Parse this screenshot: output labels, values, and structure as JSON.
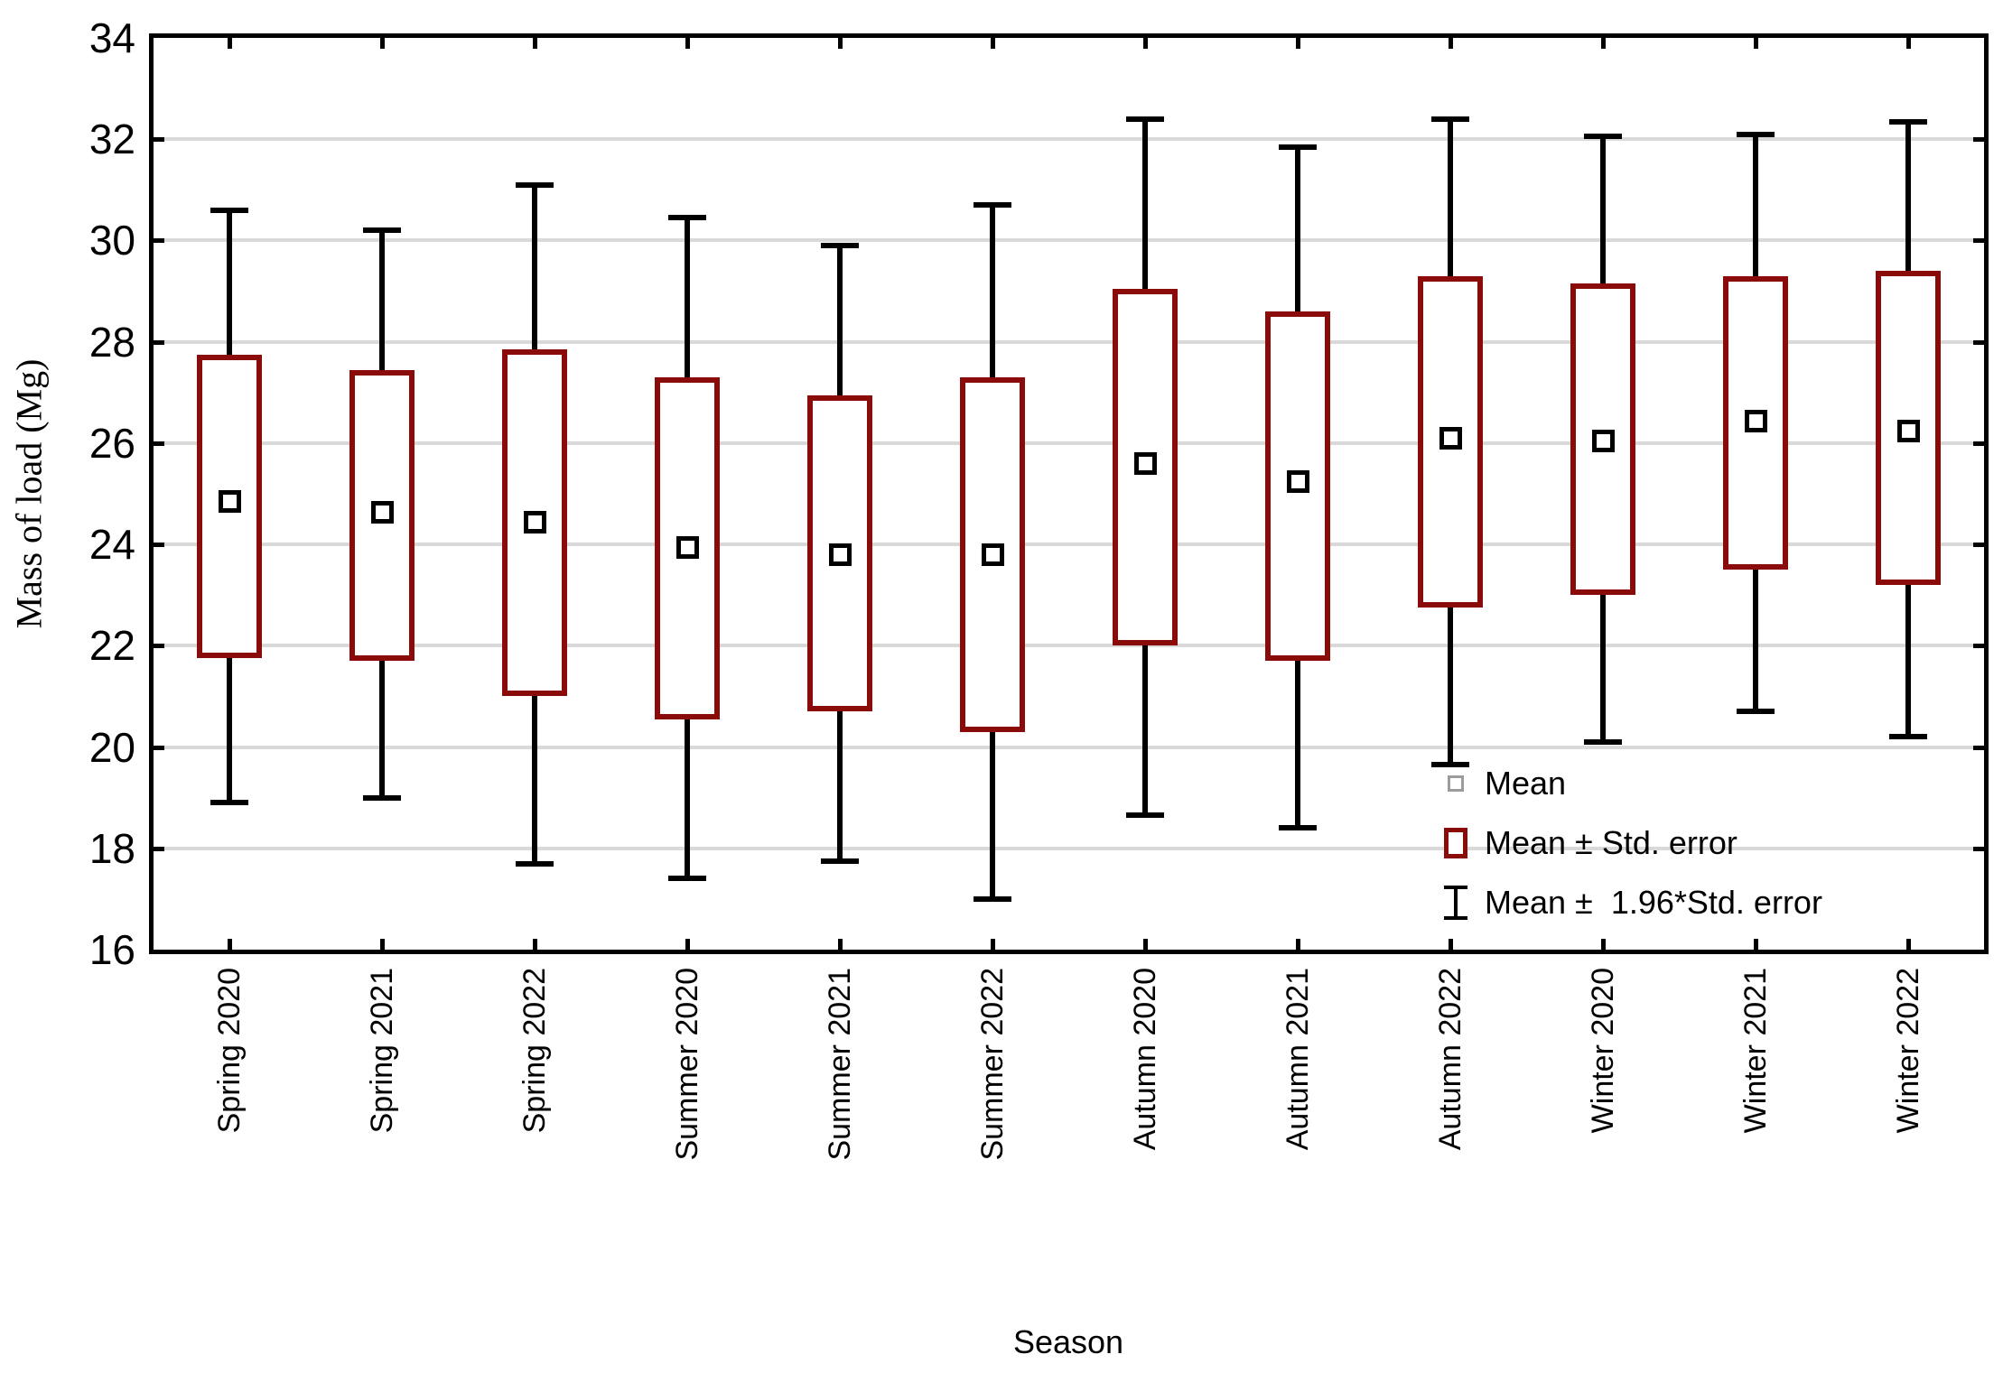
{
  "chart_data": {
    "type": "box",
    "title": "",
    "xlabel": "Season",
    "ylabel": "Mass of load (Mg)",
    "ylim": [
      16,
      34
    ],
    "yticks": [
      34,
      32,
      30,
      28,
      26,
      24,
      22,
      20,
      18,
      16
    ],
    "ygrid": [
      32,
      30,
      28,
      26,
      24,
      22,
      20,
      18
    ],
    "grid": "horizontal-only",
    "legend_position": "inside-lower-right",
    "categories": [
      "Spring 2020",
      "Spring 2021",
      "Spring 2022",
      "Summer 2020",
      "Summer 2021",
      "Summer 2022",
      "Autumn 2020",
      "Autumn 2021",
      "Autumn 2022",
      "Winter 2020",
      "Winter 2021",
      "Winter 2022"
    ],
    "series": [
      {
        "name": "Mean",
        "values": [
          24.85,
          24.65,
          24.45,
          23.95,
          23.8,
          23.8,
          25.6,
          25.25,
          26.1,
          26.05,
          26.45,
          26.25
        ]
      },
      {
        "name": "Mean - Std. error",
        "values": [
          21.75,
          21.7,
          21.0,
          20.55,
          20.7,
          20.3,
          22.0,
          21.7,
          22.75,
          23.0,
          23.5,
          23.2
        ]
      },
      {
        "name": "Mean + Std. error",
        "values": [
          27.75,
          27.45,
          27.85,
          27.3,
          26.95,
          27.3,
          29.05,
          28.6,
          29.3,
          29.15,
          29.3,
          29.4
        ]
      },
      {
        "name": "Mean - 1.96*Std. error",
        "values": [
          18.9,
          19.0,
          17.7,
          17.4,
          17.75,
          17.0,
          18.65,
          18.4,
          19.65,
          20.1,
          20.7,
          20.2
        ]
      },
      {
        "name": "Mean + 1.96*Std. error",
        "values": [
          30.6,
          30.2,
          31.1,
          30.45,
          29.9,
          30.7,
          32.4,
          31.85,
          32.4,
          32.05,
          32.1,
          32.35
        ]
      }
    ],
    "legend": {
      "entries": [
        {
          "marker": "mean-square",
          "label": "Mean"
        },
        {
          "marker": "se-box",
          "label": "Mean ± Std. error"
        },
        {
          "marker": "ci-whisker",
          "label": "Mean ±  1.96*Std. error"
        }
      ]
    },
    "colors": {
      "se_box_border": "#8B0B0B",
      "whisker": "#000000",
      "mean_marker_border": "#000000",
      "mean_marker_fill": "#ffffff",
      "grid": "#d9d9d9",
      "frame": "#000000",
      "text": "#000000",
      "background": "#ffffff"
    }
  }
}
